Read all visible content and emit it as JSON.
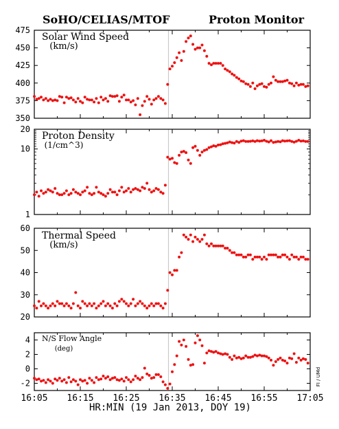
{
  "header": {
    "left_title": "SoHO/CELIAS/MTOF",
    "right_title": "Proton Monitor"
  },
  "footer": {
    "xlabel": "HR:MIN (19 Jan 2013, DOY 19)",
    "credit": "FI / UMd"
  },
  "colors": {
    "points": "#ee1111",
    "divider": "#c8c8c8",
    "axis": "#000000"
  },
  "chart_data": [
    {
      "type": "scatter",
      "title": "Solar Wind Speed",
      "unit": "(km/s)",
      "ylim": [
        350,
        475
      ],
      "yticks": [
        350,
        375,
        400,
        425,
        450,
        475
      ],
      "xlim": [
        965,
        1025
      ],
      "xticks": [
        965,
        975,
        985,
        995,
        1005,
        1015,
        1025
      ],
      "xtick_labels": [
        "16:05",
        "16:15",
        "16:25",
        "16:35",
        "16:45",
        "16:55",
        "17:05"
      ],
      "x": [
        965.0,
        965.5,
        966.0,
        966.5,
        967.0,
        967.5,
        968.0,
        968.5,
        969.0,
        969.5,
        970.0,
        970.5,
        971.0,
        971.5,
        972.0,
        972.5,
        973.0,
        973.5,
        974.0,
        974.5,
        975.0,
        975.5,
        976.0,
        976.5,
        977.0,
        977.5,
        978.0,
        978.5,
        979.0,
        979.5,
        980.0,
        980.5,
        981.0,
        981.5,
        982.0,
        982.5,
        983.0,
        983.5,
        984.0,
        984.5,
        985.0,
        985.5,
        986.0,
        986.5,
        987.0,
        987.5,
        988.0,
        988.5,
        989.0,
        989.5,
        990.0,
        990.5,
        991.0,
        991.5,
        992.0,
        992.5,
        993.0,
        993.5,
        994.0,
        994.5,
        995.0,
        995.5,
        996.0,
        996.5,
        997.0,
        997.5,
        998.0,
        998.5,
        999.0,
        999.5,
        1000.0,
        1000.5,
        1001.0,
        1001.5,
        1002.0,
        1002.5,
        1003.0,
        1003.5,
        1004.0,
        1004.5,
        1005.0,
        1005.5,
        1006.0,
        1006.5,
        1007.0,
        1007.5,
        1008.0,
        1008.5,
        1009.0,
        1009.5,
        1010.0,
        1010.5,
        1011.0,
        1011.5,
        1012.0,
        1012.5,
        1013.0,
        1013.5,
        1014.0,
        1014.5,
        1015.0,
        1015.5,
        1016.0,
        1016.5,
        1017.0,
        1017.5,
        1018.0,
        1018.5,
        1019.0,
        1019.5,
        1020.0,
        1020.5,
        1021.0,
        1021.5,
        1022.0,
        1022.5,
        1023.0,
        1023.5,
        1024.0,
        1024.5
      ],
      "y": [
        381,
        377,
        378,
        380,
        376,
        378,
        375,
        377,
        375,
        376,
        375,
        381,
        380,
        372,
        380,
        378,
        379,
        376,
        373,
        378,
        374,
        372,
        380,
        377,
        376,
        376,
        373,
        378,
        372,
        380,
        376,
        378,
        374,
        382,
        381,
        381,
        382,
        374,
        380,
        383,
        376,
        376,
        373,
        375,
        369,
        378,
        355,
        368,
        374,
        381,
        377,
        370,
        376,
        378,
        381,
        378,
        376,
        371,
        398,
        420,
        424,
        429,
        436,
        443,
        432,
        445,
        459,
        464,
        467,
        455,
        448,
        450,
        450,
        454,
        446,
        438,
        428,
        426,
        428,
        428,
        428,
        428,
        425,
        420,
        418,
        416,
        413,
        411,
        408,
        406,
        403,
        402,
        399,
        398,
        395,
        400,
        392,
        396,
        398,
        399,
        395,
        394,
        398,
        400,
        409,
        404,
        402,
        402,
        402,
        403,
        404,
        400,
        399,
        396,
        400,
        397,
        398,
        398,
        395,
        396
      ]
    },
    {
      "type": "scatter",
      "title": "Proton Density",
      "unit": "(1/cm^3)",
      "yscale": "log",
      "ylim": [
        1,
        20
      ],
      "yticks": [
        1,
        10,
        20
      ],
      "xlim": [
        965,
        1025
      ],
      "xticks": [
        965,
        975,
        985,
        995,
        1005,
        1015,
        1025
      ],
      "xtick_labels": [
        "16:05",
        "16:15",
        "16:25",
        "16:35",
        "16:45",
        "16:55",
        "17:05"
      ],
      "x": [
        965.0,
        965.5,
        966.0,
        966.5,
        967.0,
        967.5,
        968.0,
        968.5,
        969.0,
        969.5,
        970.0,
        970.5,
        971.0,
        971.5,
        972.0,
        972.5,
        973.0,
        973.5,
        974.0,
        974.5,
        975.0,
        975.5,
        976.0,
        976.5,
        977.0,
        977.5,
        978.0,
        978.5,
        979.0,
        979.5,
        980.0,
        980.5,
        981.0,
        981.5,
        982.0,
        982.5,
        983.0,
        983.5,
        984.0,
        984.5,
        985.0,
        985.5,
        986.0,
        986.5,
        987.0,
        987.5,
        988.0,
        988.5,
        989.0,
        989.5,
        990.0,
        990.5,
        991.0,
        991.5,
        992.0,
        992.5,
        993.0,
        993.5,
        994.0,
        994.5,
        995.0,
        995.5,
        996.0,
        996.5,
        997.0,
        997.5,
        998.0,
        998.5,
        999.0,
        999.5,
        1000.0,
        1000.5,
        1001.0,
        1001.5,
        1002.0,
        1002.5,
        1003.0,
        1003.5,
        1004.0,
        1004.5,
        1005.0,
        1005.5,
        1006.0,
        1006.5,
        1007.0,
        1007.5,
        1008.0,
        1008.5,
        1009.0,
        1009.5,
        1010.0,
        1010.5,
        1011.0,
        1011.5,
        1012.0,
        1012.5,
        1013.0,
        1013.5,
        1014.0,
        1014.5,
        1015.0,
        1015.5,
        1016.0,
        1016.5,
        1017.0,
        1017.5,
        1018.0,
        1018.5,
        1019.0,
        1019.5,
        1020.0,
        1020.5,
        1021.0,
        1021.5,
        1022.0,
        1022.5,
        1023.0,
        1023.5,
        1024.0,
        1024.5
      ],
      "y": [
        2.0,
        2.2,
        1.9,
        2.3,
        2.1,
        2.2,
        2.4,
        2.3,
        2.2,
        2.5,
        2.1,
        2.0,
        2.0,
        2.1,
        2.3,
        2.0,
        2.1,
        2.4,
        2.2,
        2.1,
        2.0,
        2.2,
        2.3,
        2.6,
        2.1,
        2.0,
        2.1,
        2.6,
        2.2,
        2.1,
        2.0,
        1.9,
        2.1,
        2.4,
        2.2,
        2.2,
        2.0,
        2.3,
        2.6,
        2.2,
        2.3,
        2.5,
        2.2,
        2.4,
        2.5,
        2.4,
        2.3,
        2.6,
        2.5,
        3.0,
        2.4,
        2.2,
        2.3,
        2.5,
        2.4,
        2.2,
        2.1,
        2.8,
        7.5,
        7.0,
        7.2,
        6.2,
        6.0,
        8.0,
        9.0,
        9.2,
        8.8,
        6.8,
        6.0,
        10.5,
        11.0,
        9.5,
        8.0,
        9.0,
        9.5,
        9.8,
        10.5,
        10.8,
        11.2,
        11.0,
        11.5,
        11.6,
        12.0,
        12.2,
        12.4,
        12.8,
        12.5,
        12.3,
        13.0,
        12.6,
        13.2,
        13.4,
        13.0,
        13.0,
        13.1,
        13.3,
        13.0,
        13.4,
        13.2,
        13.3,
        13.6,
        13.1,
        12.8,
        13.4,
        12.6,
        12.8,
        13.0,
        12.9,
        13.4,
        13.2,
        13.3,
        13.4,
        13.0,
        12.7,
        13.1,
        13.6,
        13.2,
        13.3,
        13.0,
        13.0
      ]
    },
    {
      "type": "scatter",
      "title": "Thermal Speed",
      "unit": "(km/s)",
      "ylim": [
        20,
        60
      ],
      "yticks": [
        20,
        30,
        40,
        50,
        60
      ],
      "xlim": [
        965,
        1025
      ],
      "xticks": [
        965,
        975,
        985,
        995,
        1005,
        1015,
        1025
      ],
      "xtick_labels": [
        "16:05",
        "16:15",
        "16:25",
        "16:35",
        "16:45",
        "16:55",
        "17:05"
      ],
      "x": [
        965.0,
        965.5,
        966.0,
        966.5,
        967.0,
        967.5,
        968.0,
        968.5,
        969.0,
        969.5,
        970.0,
        970.5,
        971.0,
        971.5,
        972.0,
        972.5,
        973.0,
        973.5,
        974.0,
        974.5,
        975.0,
        975.5,
        976.0,
        976.5,
        977.0,
        977.5,
        978.0,
        978.5,
        979.0,
        979.5,
        980.0,
        980.5,
        981.0,
        981.5,
        982.0,
        982.5,
        983.0,
        983.5,
        984.0,
        984.5,
        985.0,
        985.5,
        986.0,
        986.5,
        987.0,
        987.5,
        988.0,
        988.5,
        989.0,
        989.5,
        990.0,
        990.5,
        991.0,
        991.5,
        992.0,
        992.5,
        993.0,
        993.5,
        994.0,
        994.5,
        995.0,
        995.5,
        996.0,
        996.5,
        997.0,
        997.5,
        998.0,
        998.5,
        999.0,
        999.5,
        1000.0,
        1000.5,
        1001.0,
        1001.5,
        1002.0,
        1002.5,
        1003.0,
        1003.5,
        1004.0,
        1004.5,
        1005.0,
        1005.5,
        1006.0,
        1006.5,
        1007.0,
        1007.5,
        1008.0,
        1008.5,
        1009.0,
        1009.5,
        1010.0,
        1010.5,
        1011.0,
        1011.5,
        1012.0,
        1012.5,
        1013.0,
        1013.5,
        1014.0,
        1014.5,
        1015.0,
        1015.5,
        1016.0,
        1016.5,
        1017.0,
        1017.5,
        1018.0,
        1018.5,
        1019.0,
        1019.5,
        1020.0,
        1020.5,
        1021.0,
        1021.5,
        1022.0,
        1022.5,
        1023.0,
        1023.5,
        1024.0,
        1024.5
      ],
      "y": [
        25,
        24,
        27,
        25,
        26,
        25,
        24,
        25,
        26,
        25,
        27,
        26,
        26,
        25,
        26,
        25,
        24,
        26,
        31,
        25,
        24,
        27,
        26,
        25,
        26,
        25,
        26,
        24,
        25,
        26,
        27,
        25,
        26,
        25,
        24,
        26,
        25,
        27,
        28,
        27,
        26,
        25,
        26,
        28,
        25,
        26,
        27,
        26,
        25,
        24,
        25,
        26,
        25,
        26,
        26,
        25,
        24,
        26,
        32,
        40,
        39,
        41,
        41,
        47,
        49,
        57,
        56,
        55,
        57,
        54,
        56,
        55,
        54,
        55,
        57,
        53,
        52,
        53,
        52,
        52,
        52,
        52,
        52,
        51,
        51,
        50,
        49,
        49,
        48,
        48,
        48,
        47,
        47,
        48,
        48,
        46,
        47,
        47,
        47,
        46,
        47,
        46,
        48,
        48,
        48,
        48,
        47,
        47,
        48,
        48,
        47,
        46,
        48,
        47,
        47,
        46,
        47,
        47,
        46,
        46
      ]
    },
    {
      "type": "scatter",
      "title": "N/S Flow Angle",
      "unit": "(deg)",
      "ylim": [
        -3,
        5
      ],
      "yticks": [
        -2,
        0,
        2,
        4
      ],
      "xlim": [
        965,
        1025
      ],
      "xticks": [
        965,
        975,
        985,
        995,
        1005,
        1015,
        1025
      ],
      "xtick_labels": [
        "16:05",
        "16:15",
        "16:25",
        "16:35",
        "16:45",
        "16:55",
        "17:05"
      ],
      "x": [
        965.0,
        965.5,
        966.0,
        966.5,
        967.0,
        967.5,
        968.0,
        968.5,
        969.0,
        969.5,
        970.0,
        970.5,
        971.0,
        971.5,
        972.0,
        972.5,
        973.0,
        973.5,
        974.0,
        974.5,
        975.0,
        975.5,
        976.0,
        976.5,
        977.0,
        977.5,
        978.0,
        978.5,
        979.0,
        979.5,
        980.0,
        980.5,
        981.0,
        981.5,
        982.0,
        982.5,
        983.0,
        983.5,
        984.0,
        984.5,
        985.0,
        985.5,
        986.0,
        986.5,
        987.0,
        987.5,
        988.0,
        988.5,
        989.0,
        989.5,
        990.0,
        990.5,
        991.0,
        991.5,
        992.0,
        992.5,
        993.0,
        993.5,
        994.0,
        994.5,
        995.0,
        995.5,
        996.0,
        996.5,
        997.0,
        997.5,
        998.0,
        998.5,
        999.0,
        999.5,
        1000.0,
        1000.5,
        1001.0,
        1001.5,
        1002.0,
        1002.5,
        1003.0,
        1003.5,
        1004.0,
        1004.5,
        1005.0,
        1005.5,
        1006.0,
        1006.5,
        1007.0,
        1007.5,
        1008.0,
        1008.5,
        1009.0,
        1009.5,
        1010.0,
        1010.5,
        1011.0,
        1011.5,
        1012.0,
        1012.5,
        1013.0,
        1013.5,
        1014.0,
        1014.5,
        1015.0,
        1015.5,
        1016.0,
        1016.5,
        1017.0,
        1017.5,
        1018.0,
        1018.5,
        1019.0,
        1019.5,
        1020.0,
        1020.5,
        1021.0,
        1021.5,
        1022.0,
        1022.5,
        1023.0,
        1023.5,
        1024.0,
        1024.5
      ],
      "y": [
        -1.3,
        -1.5,
        -1.4,
        -1.7,
        -1.6,
        -1.9,
        -1.5,
        -1.7,
        -2.0,
        -1.4,
        -1.6,
        -1.3,
        -1.7,
        -1.5,
        -1.9,
        -1.2,
        -1.8,
        -1.5,
        -1.7,
        -2.2,
        -1.5,
        -1.7,
        -1.6,
        -2.0,
        -1.3,
        -1.6,
        -1.9,
        -1.2,
        -1.5,
        -1.4,
        -1.0,
        -1.3,
        -1.1,
        -1.5,
        -1.3,
        -1.2,
        -1.5,
        -1.6,
        -1.4,
        -1.7,
        -1.2,
        -1.5,
        -1.8,
        -1.5,
        -1.0,
        -1.3,
        -1.5,
        -1.2,
        0.1,
        -0.7,
        -0.9,
        -1.3,
        -1.2,
        -0.8,
        -0.8,
        -1.1,
        -1.8,
        -2.2,
        -2.7,
        -2.1,
        -0.4,
        0.6,
        1.8,
        3.8,
        3.3,
        4.0,
        3.1,
        1.3,
        0.5,
        0.6,
        3.6,
        4.6,
        4.0,
        3.2,
        0.8,
        2.2,
        2.5,
        2.4,
        2.3,
        2.4,
        2.2,
        2.1,
        2.0,
        2.1,
        2.0,
        1.6,
        1.3,
        1.8,
        1.5,
        1.6,
        1.4,
        1.5,
        1.8,
        1.6,
        1.6,
        1.7,
        1.9,
        1.8,
        1.9,
        1.8,
        1.8,
        1.7,
        1.5,
        1.2,
        0.5,
        1.0,
        1.3,
        1.5,
        1.2,
        1.1,
        0.8,
        1.5,
        1.4,
        2.1,
        0.9,
        1.5,
        1.2,
        1.4,
        1.3,
        0.8
      ]
    }
  ]
}
